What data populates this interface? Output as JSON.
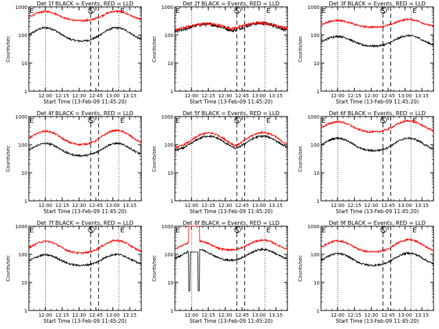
{
  "layout": {
    "rows": 3,
    "cols": 3
  },
  "legend_text_prefix": "BLACK = Events, RED = LLD",
  "xlabel": "Start Time (13-Feb-09 11:45:20)",
  "ylabel": "Counts/sec",
  "x_ticks": [
    "12:00",
    "12:15",
    "12:30",
    "12:45",
    "13:00",
    "13:15"
  ],
  "y_ticks": [
    "1",
    "10",
    "100",
    "1000"
  ],
  "markers": {
    "e": "E",
    "s": "S"
  },
  "colors": {
    "events": "#000000",
    "lld": "#ff0000",
    "axes": "#000000"
  },
  "chart_data": [
    {
      "title": "Det 1f  BLACK = Events, RED = LLD",
      "type": "line",
      "yscale": "log",
      "ylim": [
        1,
        1000
      ],
      "x_range_min_after_start": [
        0,
        100
      ],
      "dotted_lines_min": [
        15,
        80
      ],
      "dashed_lines_min": [
        55,
        62
      ],
      "series": [
        {
          "name": "Events",
          "color": "#000000",
          "base": 60,
          "peaks": [
            [
              15,
              180,
              10
            ],
            [
              78,
              180,
              10
            ]
          ],
          "min_val": 60
        },
        {
          "name": "LLD",
          "color": "#ff0000",
          "base": 320,
          "peaks": [
            [
              15,
              680,
              10
            ],
            [
              78,
              700,
              10
            ]
          ],
          "min_val": 320
        }
      ]
    },
    {
      "title": "Det 2f  BLACK = Events, RED = LLD",
      "type": "line",
      "yscale": "log",
      "ylim": [
        1,
        1000
      ],
      "x_range_min_after_start": [
        0,
        100
      ],
      "dotted_lines_min": [
        15,
        80
      ],
      "dashed_lines_min": [
        55,
        62
      ],
      "series": [
        {
          "name": "Events",
          "color": "#000000",
          "base": 120,
          "peaks": [
            [
              28,
              240,
              14
            ],
            [
              76,
              260,
              14
            ]
          ],
          "min_val": 110,
          "noise": 0.14
        },
        {
          "name": "LLD",
          "color": "#ff0000",
          "base": 150,
          "peaks": [
            [
              28,
              250,
              14
            ],
            [
              76,
              270,
              14
            ]
          ],
          "min_val": 140,
          "noise": 0.12
        }
      ]
    },
    {
      "title": "Det 3f  BLACK = Events, RED = LLD",
      "type": "line",
      "yscale": "log",
      "ylim": [
        1,
        1000
      ],
      "x_range_min_after_start": [
        0,
        100
      ],
      "dotted_lines_min": [
        15,
        80
      ],
      "dashed_lines_min": [
        55,
        62
      ],
      "series": [
        {
          "name": "Events",
          "color": "#000000",
          "base": 40,
          "peaks": [
            [
              15,
              90,
              10
            ],
            [
              78,
              95,
              10
            ]
          ],
          "min_val": 40
        },
        {
          "name": "LLD",
          "color": "#ff0000",
          "base": 200,
          "peaks": [
            [
              15,
              330,
              10
            ],
            [
              78,
              360,
              10
            ]
          ],
          "min_val": 190
        }
      ]
    },
    {
      "title": "Det 4f  BLACK = Events, RED = LLD",
      "type": "line",
      "yscale": "log",
      "ylim": [
        1,
        1000
      ],
      "x_range_min_after_start": [
        0,
        100
      ],
      "dotted_lines_min": [
        15,
        80
      ],
      "dashed_lines_min": [
        55,
        62
      ],
      "series": [
        {
          "name": "Events",
          "color": "#000000",
          "base": 40,
          "peaks": [
            [
              15,
              110,
              10
            ],
            [
              78,
              110,
              10
            ]
          ],
          "min_val": 40
        },
        {
          "name": "LLD",
          "color": "#ff0000",
          "base": 100,
          "peaks": [
            [
              15,
              300,
              10
            ],
            [
              78,
              320,
              10
            ]
          ],
          "min_val": 100
        }
      ]
    },
    {
      "title": "Det 5f  BLACK = Events, RED = LLD",
      "type": "line",
      "yscale": "log",
      "ylim": [
        1,
        1000
      ],
      "x_range_min_after_start": [
        0,
        100
      ],
      "dotted_lines_min": [
        15,
        80
      ],
      "dashed_lines_min": [
        55,
        62
      ],
      "series": [
        {
          "name": "Events",
          "color": "#000000",
          "base": 60,
          "peaks": [
            [
              30,
              200,
              11
            ],
            [
              78,
              200,
              11
            ]
          ],
          "min_val": 60
        },
        {
          "name": "LLD",
          "color": "#ff0000",
          "base": 80,
          "peaks": [
            [
              30,
              260,
              11
            ],
            [
              78,
              270,
              11
            ]
          ],
          "min_val": 75
        }
      ]
    },
    {
      "title": "Det 6f  BLACK = Events, RED = LLD",
      "type": "line",
      "yscale": "log",
      "ylim": [
        1,
        1000
      ],
      "x_range_min_after_start": [
        0,
        100
      ],
      "dotted_lines_min": [
        15,
        80
      ],
      "dashed_lines_min": [
        55,
        62
      ],
      "series": [
        {
          "name": "Events",
          "color": "#000000",
          "base": 60,
          "peaks": [
            [
              15,
              170,
              10
            ],
            [
              78,
              170,
              10
            ]
          ],
          "min_val": 60
        },
        {
          "name": "LLD",
          "color": "#ff0000",
          "base": 280,
          "peaks": [
            [
              15,
              650,
              10
            ],
            [
              78,
              700,
              10
            ]
          ],
          "min_val": 280
        }
      ]
    },
    {
      "title": "Det 7f  BLACK = Events, RED = LLD",
      "type": "line",
      "yscale": "log",
      "ylim": [
        1,
        1000
      ],
      "x_range_min_after_start": [
        0,
        100
      ],
      "dotted_lines_min": [
        15,
        80
      ],
      "dashed_lines_min": [
        55,
        62
      ],
      "series": [
        {
          "name": "Events",
          "color": "#000000",
          "base": 40,
          "peaks": [
            [
              15,
              95,
              10
            ],
            [
              78,
              100,
              10
            ]
          ],
          "min_val": 40
        },
        {
          "name": "LLD",
          "color": "#ff0000",
          "base": 110,
          "peaks": [
            [
              15,
              290,
              10
            ],
            [
              78,
              310,
              10
            ]
          ],
          "min_val": 110
        }
      ]
    },
    {
      "title": "Det 8f  BLACK = Events, RED = LLD",
      "type": "line",
      "yscale": "log",
      "ylim": [
        1,
        1000
      ],
      "x_range_min_after_start": [
        0,
        100
      ],
      "dotted_lines_min": [
        15,
        80
      ],
      "dashed_lines_min": [
        55,
        62
      ],
      "anomaly": {
        "start_min": 12,
        "end_min": 22,
        "events_min": 5,
        "lld_max": 1000
      },
      "series": [
        {
          "name": "Events",
          "color": "#000000",
          "base": 60,
          "peaks": [
            [
              20,
              150,
              10
            ],
            [
              78,
              150,
              10
            ]
          ],
          "min_val": 60
        },
        {
          "name": "LLD",
          "color": "#ff0000",
          "base": 140,
          "peaks": [
            [
              20,
              300,
              10
            ],
            [
              78,
              320,
              10
            ]
          ],
          "min_val": 140
        }
      ]
    },
    {
      "title": "Det 9f  BLACK = Events, RED = LLD",
      "type": "line",
      "yscale": "log",
      "ylim": [
        1,
        1000
      ],
      "x_range_min_after_start": [
        0,
        100
      ],
      "dotted_lines_min": [
        15,
        80
      ],
      "dashed_lines_min": [
        55,
        62
      ],
      "series": [
        {
          "name": "Events",
          "color": "#000000",
          "base": 40,
          "peaks": [
            [
              15,
              105,
              10
            ],
            [
              78,
              110,
              10
            ]
          ],
          "min_val": 40
        },
        {
          "name": "LLD",
          "color": "#ff0000",
          "base": 120,
          "peaks": [
            [
              15,
              300,
              10
            ],
            [
              78,
              330,
              10
            ]
          ],
          "min_val": 120
        }
      ]
    }
  ]
}
